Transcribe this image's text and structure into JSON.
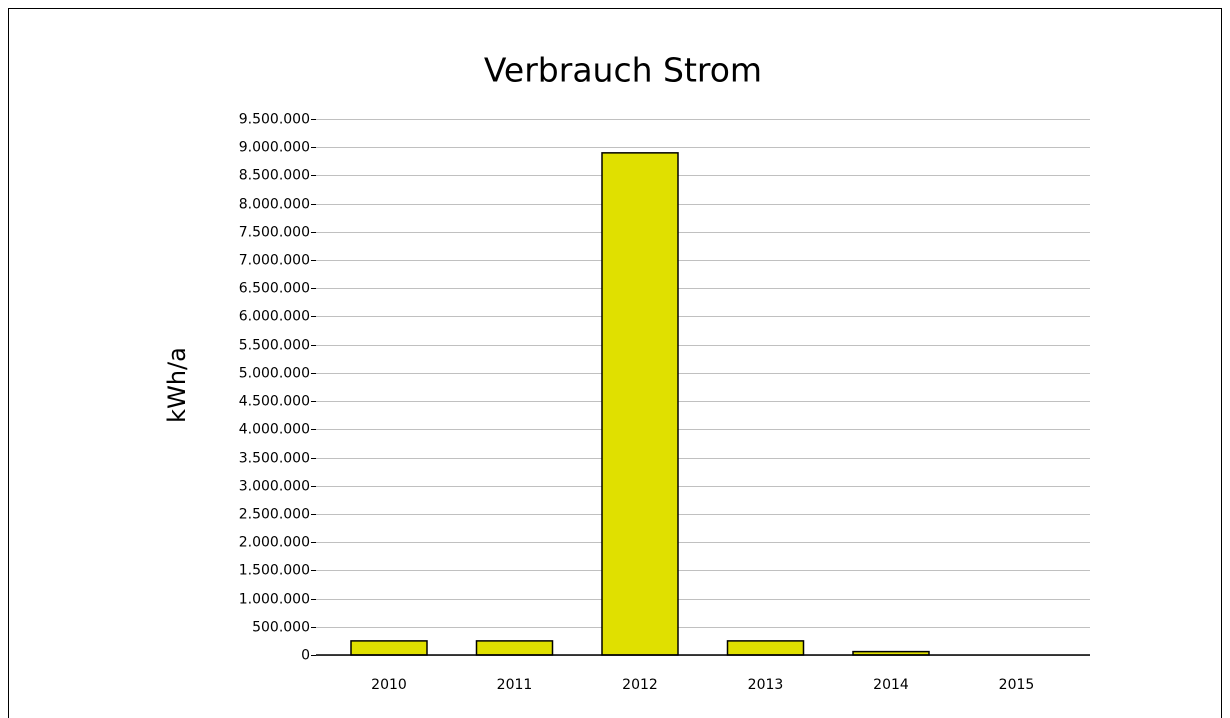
{
  "chart_data": {
    "type": "bar",
    "title": "Verbrauch Strom",
    "y_label": "kWh/a",
    "categories": [
      "2010",
      "2011",
      "2012",
      "2013",
      "2014",
      "2015"
    ],
    "values": [
      250000,
      250000,
      8900000,
      250000,
      60000,
      0
    ],
    "color": "#e0e000",
    "ylim": [
      0,
      9500000
    ],
    "yticks": [
      0,
      {
        "value": 500000,
        "label": "500.000"
      },
      {
        "value": 1000000,
        "label": "1.000.000"
      },
      {
        "value": 1500000,
        "label": "1.500.000"
      },
      {
        "value": 2000000,
        "label": "2.000.000"
      },
      {
        "value": 2500000,
        "label": "2.500.000"
      },
      {
        "value": 3000000,
        "label": "3.000.000"
      },
      {
        "value": 3500000,
        "label": "3.500.000"
      },
      {
        "value": 4000000,
        "label": "4.000.000"
      },
      {
        "value": 4500000,
        "label": "4.500.000"
      },
      {
        "value": 5000000,
        "label": "5.000.000"
      },
      {
        "value": 5500000,
        "label": "5.500.000"
      },
      {
        "value": 6000000,
        "label": "6.000.000"
      },
      {
        "value": 6500000,
        "label": "6.500.000"
      },
      {
        "value": 7000000,
        "label": "7.000.000"
      },
      {
        "value": 7500000,
        "label": "7.500.000"
      },
      {
        "value": 8000000,
        "label": "8.000.000"
      },
      {
        "value": 8500000,
        "label": "8.500.000"
      },
      {
        "value": 9000000,
        "label": "9.000.000"
      },
      {
        "value": 9500000,
        "label": "9.500.000"
      }
    ],
    "grid": true
  }
}
